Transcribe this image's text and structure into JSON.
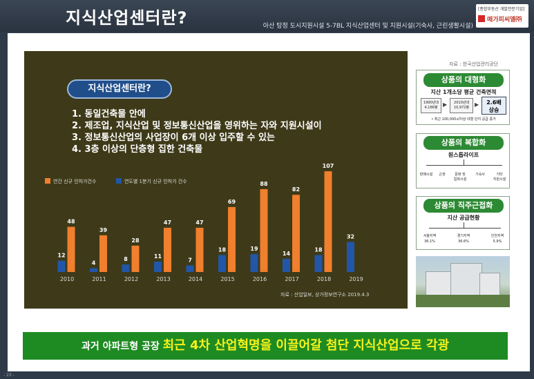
{
  "header": {
    "title": "지식산업센터란?",
    "subtitle": "아산 탕정 도시지원시설 5-7BL 지식산업센터 및 지원시설(기숙사, 근린생활시설)",
    "brand_tag": "[종합부동산 개발전문기업]",
    "brand_name": "매가피씨엘㈜"
  },
  "source_top": "자료 : 한국산업관리공단",
  "definition": {
    "pill": "지식산업센터란?",
    "items": [
      "1. 동일건축물 안에",
      "2. 제조업, 지식산업 및 정보통신산업을 영위하는 자와 지원시설이",
      "3. 정보통신산업의 사업장이 6개 이상 입주할 수 있는",
      "4. 3층 이상의 단층형 집한 건축물"
    ]
  },
  "chart_data": {
    "type": "bar",
    "categories": [
      "2010",
      "2011",
      "2012",
      "2013",
      "2014",
      "2015",
      "2016",
      "2017",
      "2018",
      "2019"
    ],
    "series": [
      {
        "name": "연도별 1분기 신규 인허가 건수",
        "values": [
          12,
          4,
          8,
          11,
          7,
          18,
          19,
          14,
          18,
          32
        ],
        "color": "#2256a8"
      },
      {
        "name": "연간 신규 인허가건수",
        "values": [
          48,
          39,
          28,
          47,
          47,
          69,
          88,
          82,
          107,
          null
        ],
        "color": "#f07f2e"
      }
    ],
    "legend_order": [
      "연간 신규 인허가건수",
      "연도별 1분기 신규 인허가 건수"
    ],
    "ylim": [
      0,
      110
    ],
    "grid": false,
    "legend_position": "top-left",
    "source": "자료 : 산업일보, 상가정보연구소 2019.4.3"
  },
  "cards": {
    "large": {
      "head": "상품의 대형화",
      "sub": "지산 1개소당 평균 건축면적",
      "b1_line1": "1990년대",
      "b1_line2": "4,186평",
      "b2_line1": "2010년대",
      "b2_line2": "10,972평",
      "b3_line1": "2.6배",
      "b3_line2": "상승",
      "note": "• 최근 100,000㎡이상 대형 단지 공급 증가"
    },
    "complex": {
      "head": "상품의 복합화",
      "sub": "원스톱라이프",
      "items": [
        "판매시설",
        "근생",
        "문화 및\n집회시설",
        "기숙사",
        "기타\n지원시설"
      ]
    },
    "proximity": {
      "head": "상품의 직주근접화",
      "sub": "지산 공급현황",
      "regions": [
        {
          "name": "서울지역",
          "value": "36.1%"
        },
        {
          "name": "경기지역",
          "value": "36.6%"
        },
        {
          "name": "인천지역",
          "value": "5.9%"
        }
      ]
    }
  },
  "banner": {
    "prefix": "과거 아파트형 공장 ",
    "highlight": "최근 4차 산업혁명을 이끌어갈 첨단 지식산업으로 각광"
  },
  "page_number": "- 23 -"
}
